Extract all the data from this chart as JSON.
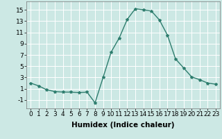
{
  "x": [
    0,
    1,
    2,
    3,
    4,
    5,
    6,
    7,
    8,
    9,
    10,
    11,
    12,
    13,
    14,
    15,
    16,
    17,
    18,
    19,
    20,
    21,
    22,
    23
  ],
  "y": [
    2.0,
    1.5,
    0.8,
    0.5,
    0.4,
    0.4,
    0.3,
    0.4,
    -1.5,
    3.0,
    7.5,
    10.0,
    13.3,
    15.2,
    15.0,
    14.8,
    13.2,
    10.5,
    6.3,
    4.7,
    3.1,
    2.6,
    2.0,
    1.8
  ],
  "line_color": "#2e7d6e",
  "marker": "*",
  "marker_size": 3,
  "bg_color": "#cce8e4",
  "grid_color": "#ffffff",
  "xlabel": "Humidex (Indice chaleur)",
  "xlabel_fontsize": 7.5,
  "xtick_labels": [
    "0",
    "1",
    "2",
    "3",
    "4",
    "5",
    "6",
    "7",
    "8",
    "9",
    "10",
    "11",
    "12",
    "13",
    "14",
    "15",
    "16",
    "17",
    "18",
    "19",
    "20",
    "21",
    "22",
    "23"
  ],
  "yticks": [
    -1,
    1,
    3,
    5,
    7,
    9,
    11,
    13,
    15
  ],
  "ylim": [
    -2.5,
    16.5
  ],
  "xlim": [
    -0.5,
    23.5
  ],
  "tick_fontsize": 6.5,
  "linewidth": 1.0
}
